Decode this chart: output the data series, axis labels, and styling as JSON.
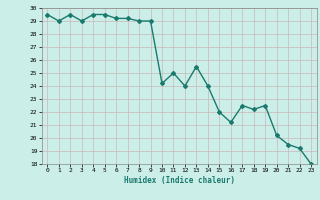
{
  "x": [
    0,
    1,
    2,
    3,
    4,
    5,
    6,
    7,
    8,
    9,
    10,
    11,
    12,
    13,
    14,
    15,
    16,
    17,
    18,
    19,
    20,
    21,
    22,
    23
  ],
  "y": [
    29.5,
    29.0,
    29.5,
    29.0,
    29.5,
    29.5,
    29.2,
    29.2,
    29.0,
    29.0,
    24.2,
    25.0,
    24.0,
    25.5,
    24.0,
    22.0,
    21.2,
    22.5,
    22.2,
    22.5,
    20.2,
    19.5,
    19.2,
    18.0
  ],
  "xlabel": "Humidex (Indice chaleur)",
  "ylim": [
    18,
    30
  ],
  "xlim": [
    -0.5,
    23.5
  ],
  "yticks": [
    18,
    19,
    20,
    21,
    22,
    23,
    24,
    25,
    26,
    27,
    28,
    29,
    30
  ],
  "xticks": [
    0,
    1,
    2,
    3,
    4,
    5,
    6,
    7,
    8,
    9,
    10,
    11,
    12,
    13,
    14,
    15,
    16,
    17,
    18,
    19,
    20,
    21,
    22,
    23
  ],
  "line_color": "#1a7a6e",
  "marker": "D",
  "marker_size": 2.0,
  "bg_color": "#cceee8",
  "grid_color": "#c8b8b8",
  "line_width": 1.0
}
